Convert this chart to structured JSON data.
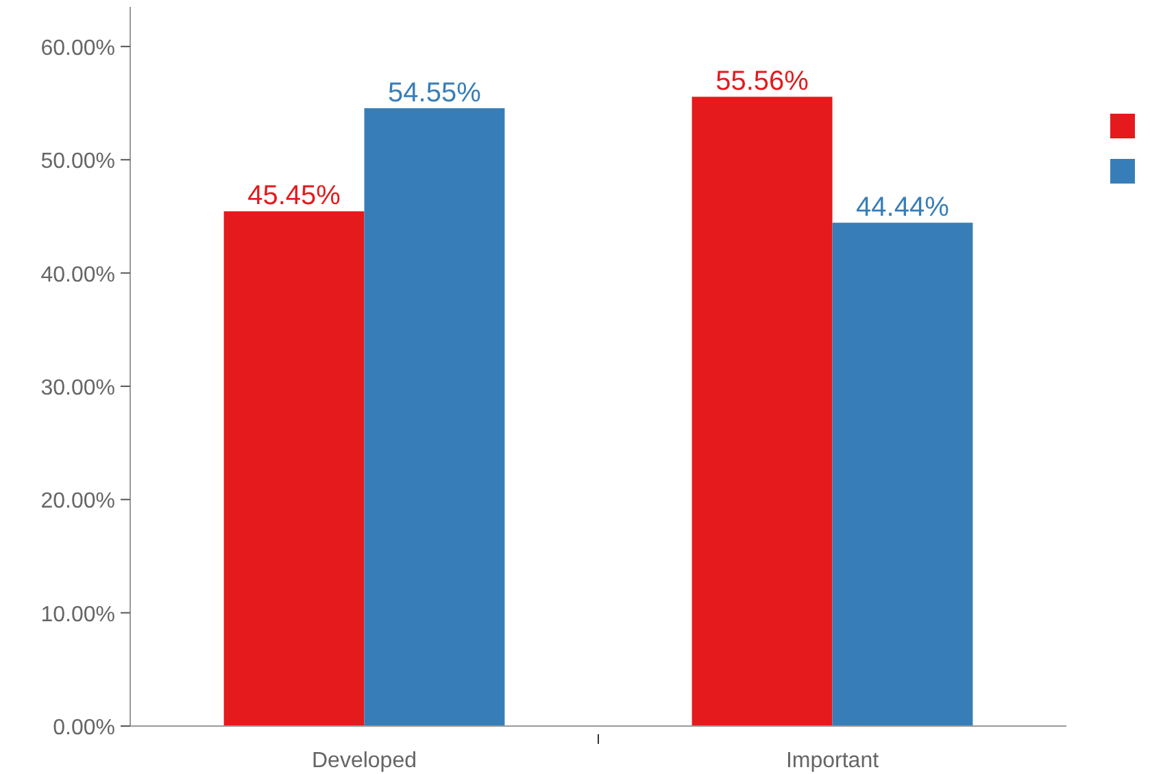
{
  "chart_data": {
    "type": "bar",
    "categories": [
      "Developed",
      "Important"
    ],
    "series": [
      {
        "color": "#e41a1c",
        "values": [
          45.45,
          55.56
        ],
        "value_labels": [
          "45.45%",
          "55.56%"
        ]
      },
      {
        "color": "#377eb8",
        "values": [
          54.55,
          44.44
        ],
        "value_labels": [
          "54.55%",
          "44.44%"
        ]
      }
    ],
    "ylim": [
      0,
      63.5
    ],
    "yticks": [
      {
        "value": 0,
        "label": "0.00%"
      },
      {
        "value": 10,
        "label": "10.00%"
      },
      {
        "value": 20,
        "label": "20.00%"
      },
      {
        "value": 30,
        "label": "30.00%"
      },
      {
        "value": 40,
        "label": "40.00%"
      },
      {
        "value": 50,
        "label": "50.00%"
      },
      {
        "value": 60,
        "label": "60.00%"
      }
    ],
    "grid": false
  }
}
